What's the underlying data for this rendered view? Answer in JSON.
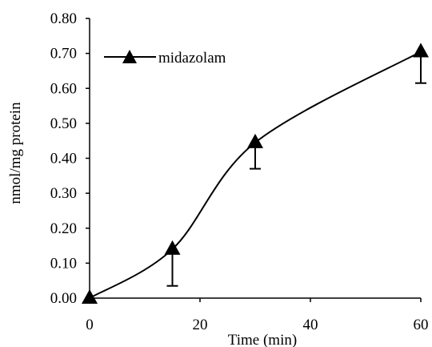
{
  "chart_data": {
    "type": "line",
    "title": "",
    "xlabel": "Time (min)",
    "ylabel": "nmol/mg protein",
    "xlim": [
      0,
      60
    ],
    "ylim": [
      0,
      0.8
    ],
    "x_ticks": [
      "0",
      "20",
      "40",
      "60"
    ],
    "y_ticks": [
      "0.00",
      "0.10",
      "0.20",
      "0.30",
      "0.40",
      "0.50",
      "0.60",
      "0.70",
      "0.80"
    ],
    "grid": false,
    "legend_position": "top-left",
    "series": [
      {
        "name": "midazolam",
        "marker": "triangle",
        "color": "#000000",
        "x": [
          0,
          15,
          30,
          60
        ],
        "y": [
          0.0,
          0.14,
          0.445,
          0.705
        ],
        "error_lower": [
          0.0,
          0.105,
          0.075,
          0.09
        ]
      }
    ]
  }
}
